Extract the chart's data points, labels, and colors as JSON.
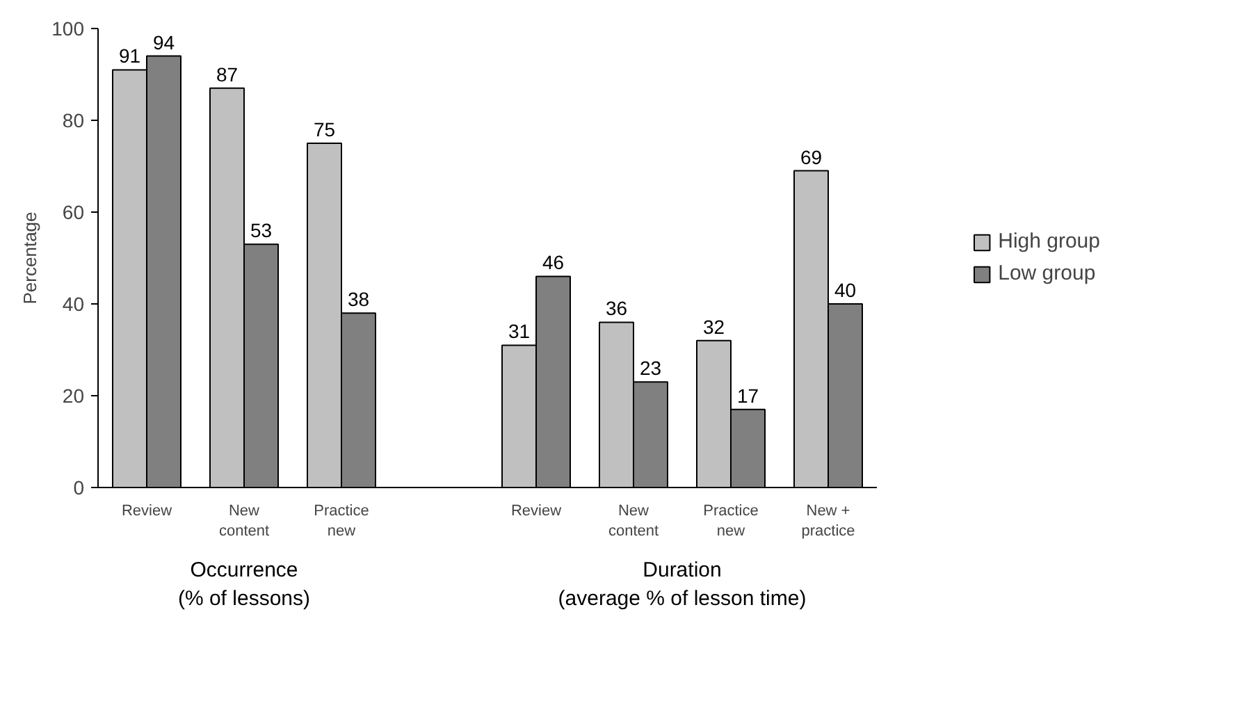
{
  "chart_data": {
    "type": "bar",
    "ylabel": "Percentage",
    "categories": [
      "Review",
      "New content",
      "Practice new",
      null,
      "Review",
      "New content",
      "Practice new",
      "New + practice"
    ],
    "series": [
      {
        "name": "High group",
        "color": "#c0c0c0",
        "values": [
          91,
          87,
          75,
          null,
          31,
          36,
          32,
          69
        ]
      },
      {
        "name": "Low group",
        "color": "#808080",
        "values": [
          94,
          53,
          38,
          null,
          46,
          23,
          17,
          40
        ]
      }
    ],
    "ylim": [
      0,
      100
    ],
    "yticks": [
      0,
      20,
      40,
      60,
      80,
      100
    ],
    "grid": false,
    "legend": "right",
    "data_labels": true,
    "annotations": [
      "Occurrence\n(% of lessons)",
      "Duration\n(average % of lesson time)"
    ]
  }
}
